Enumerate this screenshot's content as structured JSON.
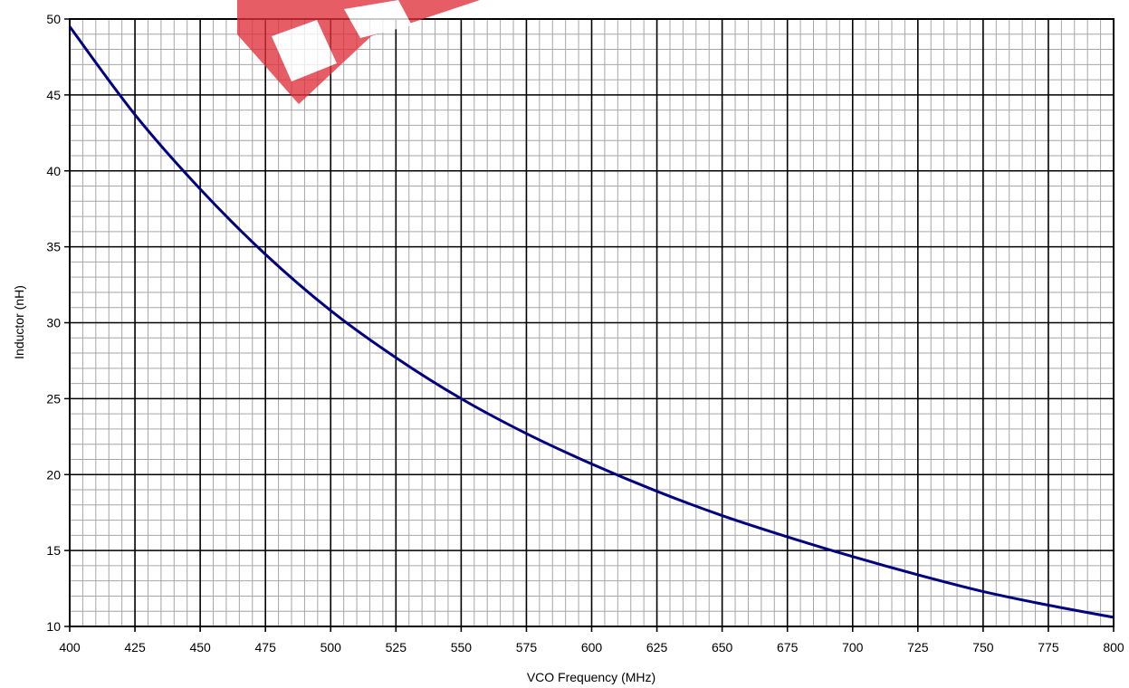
{
  "chart_data": {
    "type": "line",
    "title": "",
    "xlabel": "VCO Frequency (MHz)",
    "ylabel": "Inductor (nH)",
    "xlim": [
      400,
      800
    ],
    "ylim": [
      10,
      50
    ],
    "x_ticks": [
      400,
      425,
      450,
      475,
      500,
      525,
      550,
      575,
      600,
      625,
      650,
      675,
      700,
      725,
      750,
      775,
      800
    ],
    "y_ticks": [
      10,
      15,
      20,
      25,
      30,
      35,
      40,
      45,
      50
    ],
    "x_minor_step": 5,
    "y_minor_step": 1,
    "grid": true,
    "legend": "none",
    "series": [
      {
        "color": "#000080",
        "x": [
          400,
          425,
          450,
          475,
          500,
          525,
          550,
          575,
          600,
          625,
          650,
          675,
          700,
          725,
          750,
          775,
          800
        ],
        "y": [
          49.5,
          43.7,
          38.8,
          34.5,
          30.8,
          27.7,
          25.0,
          22.7,
          20.7,
          18.9,
          17.3,
          15.9,
          14.6,
          13.4,
          12.3,
          11.4,
          10.6
        ]
      }
    ]
  },
  "colors": {
    "background": "#ffffff",
    "major_grid": "#000000",
    "minor_grid": "#a6a6a6",
    "watermark": "#e0303a"
  },
  "watermark": {
    "shape": "red-logo-fragment"
  }
}
